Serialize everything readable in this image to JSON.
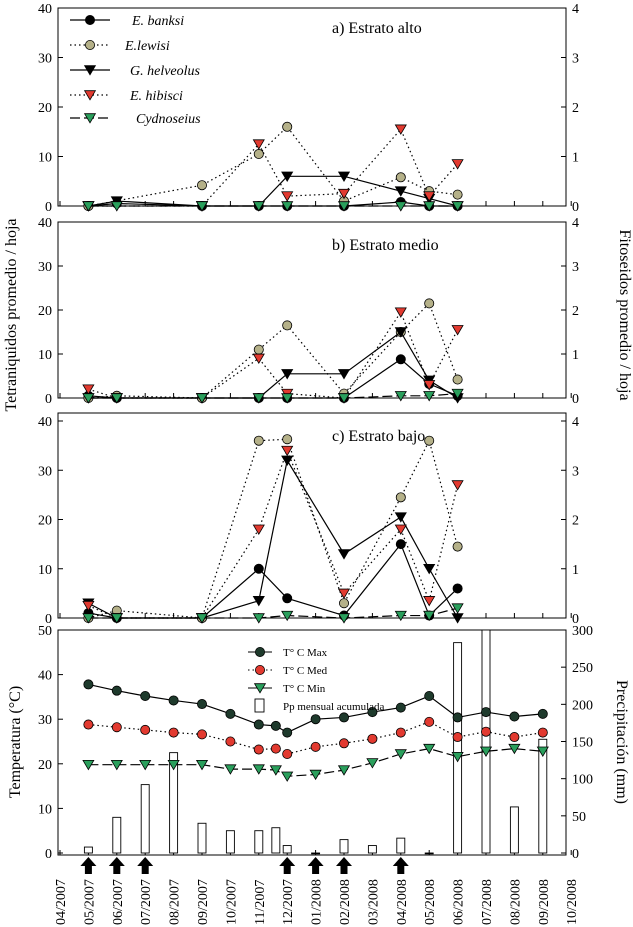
{
  "chart_data": [
    {
      "type": "line",
      "title": "a) Estrato alto",
      "ylabel": "Tetraniquidos promedio / hoja",
      "y2label": "Fitoseidos promedio / hoja",
      "ylim": [
        0,
        40
      ],
      "yticks": [
        "0",
        "10",
        "20",
        "30",
        "40"
      ],
      "y2lim": [
        0,
        4
      ],
      "y2ticks": [
        "0",
        "1",
        "2",
        "3",
        "4"
      ],
      "series": [
        {
          "name": "E. banksi",
          "axis": "left",
          "marker": "circle",
          "color": "#000000",
          "dash": "solid",
          "x": [
            1,
            2,
            5,
            7,
            8,
            10,
            12,
            13,
            14
          ],
          "values": [
            0,
            0.5,
            0,
            0,
            0,
            0,
            0.8,
            0,
            0
          ]
        },
        {
          "name": "E.lewisi",
          "axis": "left",
          "marker": "circle",
          "color": "#b5b189",
          "dash": "dot",
          "x": [
            1,
            5,
            7,
            8,
            10,
            12,
            13,
            14
          ],
          "values": [
            0,
            4.2,
            10.5,
            16,
            1,
            5.8,
            3,
            2.3
          ]
        },
        {
          "name": "G. helveolus",
          "axis": "left",
          "marker": "triangle-down",
          "color": "#000000",
          "dash": "solid",
          "x": [
            1,
            2,
            5,
            7,
            8,
            10,
            12,
            13,
            14
          ],
          "values": [
            0,
            1,
            0,
            0,
            6,
            6,
            3,
            1.5,
            0
          ]
        },
        {
          "name": "E. hibisci",
          "axis": "right",
          "marker": "triangle-down",
          "color": "#e23a30",
          "dash": "dot",
          "x": [
            1,
            5,
            7,
            8,
            10,
            12,
            13,
            14
          ],
          "values": [
            0,
            0,
            1.25,
            0.2,
            0.25,
            1.55,
            0.2,
            0.85
          ]
        },
        {
          "name": "Cydnoseius",
          "axis": "right",
          "marker": "triangle-down",
          "color": "#2a9f5c",
          "dash": "dash",
          "x": [
            1,
            2,
            5,
            7,
            8,
            10,
            12,
            13,
            14
          ],
          "values": [
            0,
            0,
            0,
            0,
            0,
            0,
            0,
            0,
            0
          ]
        }
      ]
    },
    {
      "type": "line",
      "title": "b) Estrato medio",
      "ylim": [
        0,
        40
      ],
      "yticks": [
        "0",
        "10",
        "20",
        "30",
        "40"
      ],
      "y2lim": [
        0,
        4
      ],
      "y2ticks": [
        "0",
        "1",
        "2",
        "3",
        "4"
      ],
      "series": [
        {
          "name": "E. banksi",
          "axis": "left",
          "marker": "circle",
          "color": "#000000",
          "dash": "solid",
          "x": [
            1,
            2,
            5,
            7,
            8,
            10,
            12,
            13,
            14
          ],
          "values": [
            0.5,
            0,
            0,
            0,
            0,
            0,
            8.8,
            3.2,
            0.5
          ]
        },
        {
          "name": "E.lewisi",
          "axis": "left",
          "marker": "circle",
          "color": "#b5b189",
          "dash": "dot",
          "x": [
            1,
            2,
            5,
            7,
            8,
            10,
            12,
            13,
            14
          ],
          "values": [
            0,
            0.5,
            0,
            11,
            16.5,
            1,
            15,
            21.5,
            4.2
          ]
        },
        {
          "name": "G. helveolus",
          "axis": "left",
          "marker": "triangle-down",
          "color": "#000000",
          "dash": "solid",
          "x": [
            1,
            2,
            5,
            7,
            8,
            10,
            12,
            13,
            14
          ],
          "values": [
            0,
            0,
            0,
            0,
            5.5,
            5.5,
            15,
            4,
            0
          ]
        },
        {
          "name": "E. hibisci",
          "axis": "right",
          "marker": "triangle-down",
          "color": "#e23a30",
          "dash": "dot",
          "x": [
            1,
            2,
            5,
            7,
            8,
            10,
            12,
            13,
            14
          ],
          "values": [
            0.2,
            0,
            0,
            0.9,
            0.1,
            0,
            1.95,
            0.3,
            1.55
          ]
        },
        {
          "name": "Cydnoseius",
          "axis": "right",
          "marker": "triangle-down",
          "color": "#2a9f5c",
          "dash": "dash",
          "x": [
            1,
            2,
            5,
            7,
            8,
            10,
            12,
            13,
            14
          ],
          "values": [
            0,
            0,
            0,
            0,
            0,
            0,
            0.05,
            0.05,
            0.1
          ]
        }
      ]
    },
    {
      "type": "line",
      "title": "c) Estrato bajo",
      "ylim": [
        0,
        40
      ],
      "yticks": [
        "0",
        "10",
        "20",
        "30",
        "40"
      ],
      "y2lim": [
        0,
        4
      ],
      "y2ticks": [
        "0",
        "1",
        "2",
        "3",
        "4"
      ],
      "series": [
        {
          "name": "E. banksi",
          "axis": "left",
          "marker": "circle",
          "color": "#000000",
          "dash": "solid",
          "x": [
            1,
            2,
            5,
            7,
            8,
            10,
            12,
            13,
            14
          ],
          "values": [
            1,
            0,
            0,
            10,
            4,
            0.5,
            15,
            0.5,
            6
          ]
        },
        {
          "name": "E.lewisi",
          "axis": "left",
          "marker": "circle",
          "color": "#b5b189",
          "dash": "dot",
          "x": [
            1,
            2,
            5,
            7,
            8,
            10,
            12,
            13,
            14
          ],
          "values": [
            0,
            1.5,
            0,
            36,
            36.3,
            3,
            24.5,
            36,
            14.5
          ]
        },
        {
          "name": "G. helveolus",
          "axis": "left",
          "marker": "triangle-down",
          "color": "#000000",
          "dash": "solid",
          "x": [
            1,
            2,
            5,
            7,
            8,
            10,
            12,
            13,
            14
          ],
          "values": [
            3,
            0,
            0,
            3.5,
            32,
            13,
            20.5,
            10,
            0
          ]
        },
        {
          "name": "E. hibisci",
          "axis": "right",
          "marker": "triangle-down",
          "color": "#e23a30",
          "dash": "dot",
          "x": [
            1,
            2,
            5,
            7,
            8,
            10,
            12,
            13,
            14
          ],
          "values": [
            0.25,
            0,
            0,
            1.8,
            3.4,
            0.5,
            1.8,
            0.35,
            2.7
          ]
        },
        {
          "name": "Cydnoseius",
          "axis": "right",
          "marker": "triangle-down",
          "color": "#2a9f5c",
          "dash": "dash",
          "x": [
            1,
            2,
            5,
            7,
            8,
            10,
            12,
            13,
            14
          ],
          "values": [
            0,
            0,
            0,
            0,
            0.05,
            0,
            0.05,
            0.05,
            0.2
          ]
        }
      ]
    },
    {
      "type": "line+bar",
      "ylabel": "Temperatura (°C)",
      "y2label": "Precipitación (mm)",
      "ylim": [
        0,
        50
      ],
      "yticks": [
        "0",
        "10",
        "20",
        "30",
        "40",
        "50"
      ],
      "y2lim": [
        0,
        300
      ],
      "y2ticks": [
        "0",
        "50",
        "100",
        "150",
        "200",
        "250",
        "300"
      ],
      "x_ticklabels": [
        "04/2007",
        "05/2007",
        "06/2007",
        "07/2007",
        "08/2007",
        "09/2007",
        "10/2007",
        "11/2007",
        "12/2007",
        "01/2008",
        "02/2008",
        "03/2008",
        "04/2008",
        "05/2008",
        "06/2008",
        "07/2008",
        "08/2008",
        "09/2008",
        "10/2008"
      ],
      "arrows_at": [
        1,
        2,
        3,
        8,
        9,
        10,
        12
      ],
      "series": [
        {
          "name": "T° C Max",
          "color": "#1e3a2c",
          "marker": "circle",
          "dash": "solid",
          "x": [
            1,
            2,
            3,
            4,
            5,
            6,
            7,
            7.6,
            8,
            9,
            10,
            11,
            12,
            13,
            14,
            15,
            16,
            17
          ],
          "values": [
            37.8,
            36.4,
            35.2,
            34.2,
            33.4,
            31.2,
            28.8,
            28.5,
            27,
            30,
            30.4,
            31.6,
            32.6,
            35.2,
            30.4,
            31.6,
            30.6,
            31.2
          ]
        },
        {
          "name": "T° C Med",
          "color": "#e23a30",
          "marker": "circle",
          "dash": "dot",
          "x": [
            1,
            2,
            3,
            4,
            5,
            6,
            7,
            7.6,
            8,
            9,
            10,
            11,
            12,
            13,
            14,
            15,
            16,
            17
          ],
          "values": [
            28.8,
            28.2,
            27.6,
            27,
            26.6,
            25,
            23.2,
            23.4,
            22.2,
            23.8,
            24.6,
            25.6,
            27,
            29.4,
            26,
            27.2,
            26,
            27
          ]
        },
        {
          "name": "T° C Min",
          "color": "#2a9f5c",
          "marker": "triangle-down",
          "dash": "dash",
          "x": [
            1,
            2,
            3,
            4,
            5,
            6,
            7,
            7.6,
            8,
            9,
            10,
            11,
            12,
            13,
            14,
            15,
            16,
            17
          ],
          "values": [
            19.8,
            19.8,
            19.8,
            19.8,
            19.8,
            18.8,
            18.8,
            18.6,
            17.2,
            17.6,
            18.6,
            20.2,
            22.2,
            23.4,
            21.6,
            22.8,
            23.4,
            22.8
          ]
        }
      ],
      "bars": {
        "name": "Pp mensual acumulada",
        "x": [
          1,
          2,
          3,
          4,
          5,
          6,
          7,
          7.6,
          8,
          9,
          10,
          11,
          12,
          13,
          14,
          15,
          16,
          17
        ],
        "values": [
          8,
          48,
          92,
          135,
          40,
          30,
          30,
          34,
          10,
          0,
          18,
          10,
          20,
          0,
          283,
          300,
          62,
          153
        ]
      }
    }
  ]
}
